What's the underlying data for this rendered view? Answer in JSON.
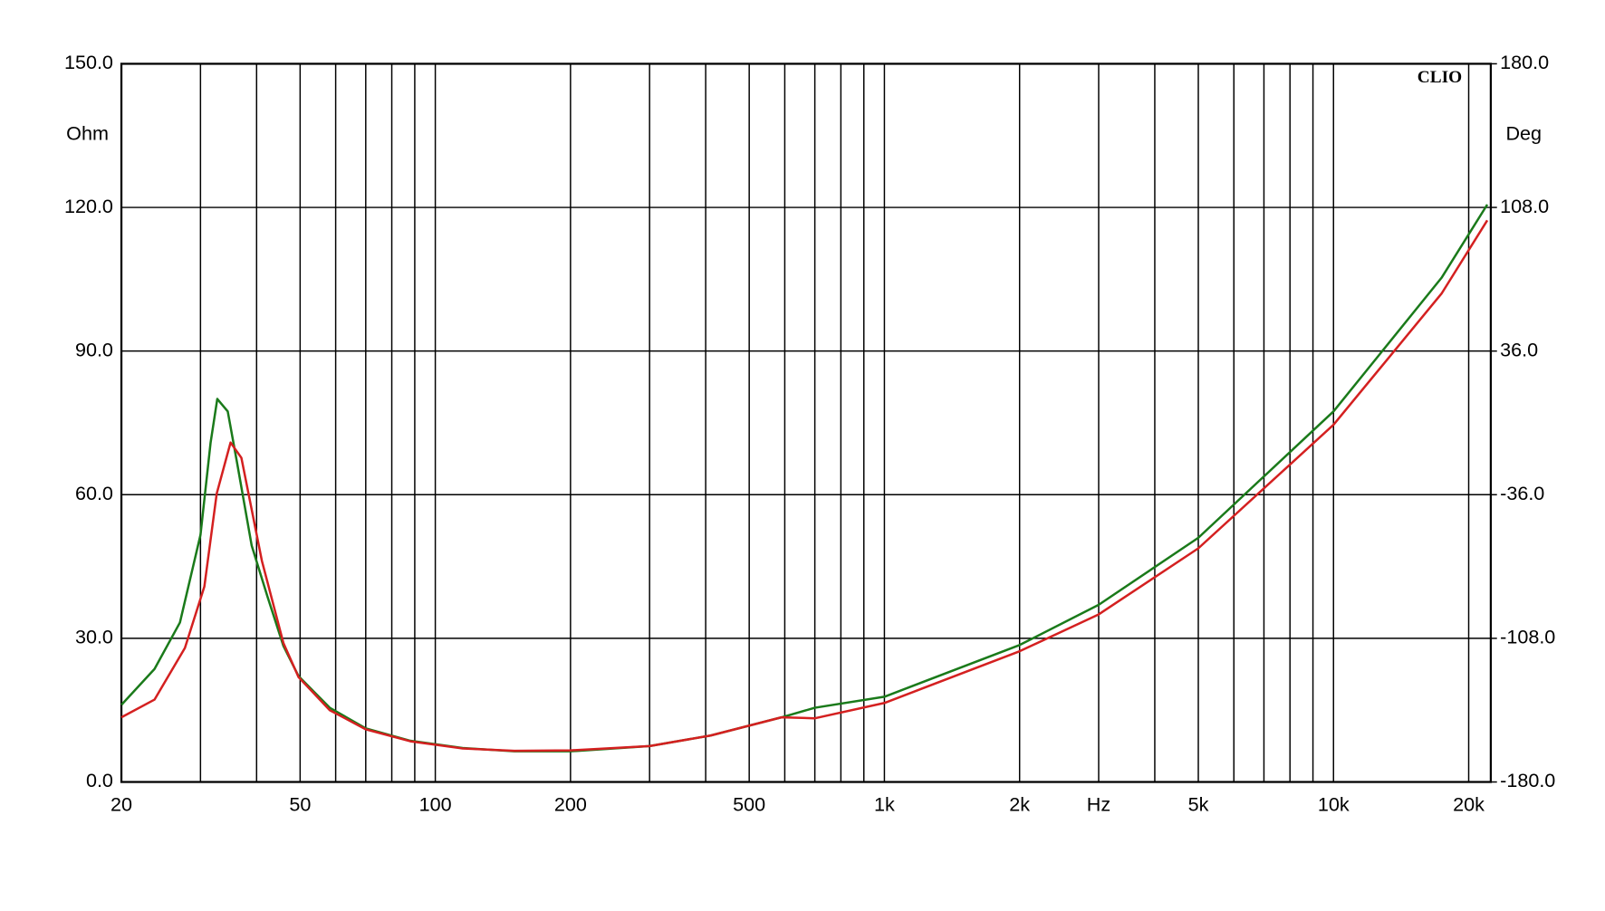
{
  "chart_data": {
    "type": "line",
    "brand": "CLIO",
    "y_label": "Ohm",
    "y2_label": "Deg",
    "xlog": true,
    "grid": true,
    "xlim": [
      20,
      22400
    ],
    "xticks": [
      20,
      50,
      100,
      200,
      500,
      {
        "value": 1000,
        "label": "1k"
      },
      {
        "value": 2000,
        "label": "2k"
      },
      {
        "value": 3000,
        "label": "Hz"
      },
      {
        "value": 5000,
        "label": "5k"
      },
      {
        "value": 10000,
        "label": "10k"
      },
      {
        "value": 20000,
        "label": "20k"
      }
    ],
    "x_minor_ticks": [
      30,
      40,
      60,
      70,
      80,
      90,
      300,
      400,
      600,
      700,
      800,
      900,
      4000,
      6000,
      7000,
      8000,
      9000
    ],
    "ylim": [
      0,
      150
    ],
    "yticks": [
      {
        "value": 0,
        "label": "0.0"
      },
      {
        "value": 30,
        "label": "30.0"
      },
      {
        "value": 60,
        "label": "60.0"
      },
      {
        "value": 90,
        "label": "90.0"
      },
      {
        "value": 120,
        "label": "120.0"
      },
      {
        "value": 150,
        "label": "150.0"
      }
    ],
    "y2lim": [
      -180,
      180
    ],
    "y2ticks": [
      {
        "value": -180,
        "label": "-180.0"
      },
      {
        "value": -108,
        "label": "-108.0"
      },
      {
        "value": -36,
        "label": "-36.0"
      },
      {
        "value": 36,
        "label": "36.0"
      },
      {
        "value": 108,
        "label": "108.0"
      },
      {
        "value": 180,
        "label": "180.0"
      }
    ],
    "series": [
      {
        "color": "#1a7a1a",
        "x": [
          20,
          23.7,
          27,
          30,
          31.6,
          32.7,
          34.5,
          36.2,
          39,
          42.3,
          45.9,
          49.6,
          58.2,
          70,
          88,
          115,
          150,
          200,
          300,
          410,
          590,
          700,
          1000,
          2000,
          3000,
          5000,
          10000,
          17400,
          22000
        ],
        "values": [
          16.1,
          23.6,
          33.3,
          51.6,
          70.9,
          80,
          77.4,
          66.6,
          49.4,
          38.7,
          28.4,
          22.1,
          15.5,
          11.2,
          8.6,
          7.1,
          6.4,
          6.4,
          7.5,
          9.7,
          13.5,
          15.5,
          17.8,
          28.6,
          37,
          51,
          77.4,
          105.3,
          120.6
        ]
      },
      {
        "color": "#d42020",
        "x": [
          20,
          23.7,
          27.7,
          30.6,
          32.6,
          35,
          37,
          41.1,
          45.9,
          49.6,
          58.2,
          70,
          88,
          115,
          150,
          200,
          300,
          410,
          590,
          700,
          1000,
          2000,
          3000,
          5000,
          10000,
          17400,
          22000
        ],
        "values": [
          13.5,
          17.2,
          28,
          40.8,
          60.2,
          70.9,
          67.7,
          46.2,
          29,
          21.9,
          15,
          11,
          8.5,
          7,
          6.5,
          6.6,
          7.5,
          9.7,
          13.5,
          13.3,
          16.5,
          27.3,
          35,
          48.8,
          74.6,
          102,
          117.3
        ]
      }
    ]
  }
}
